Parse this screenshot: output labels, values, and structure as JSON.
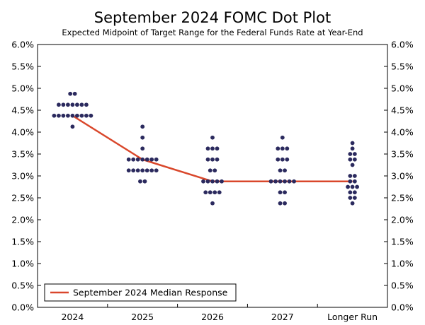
{
  "chart_data": {
    "type": "scatter",
    "title": "September 2024 FOMC Dot Plot",
    "subtitle": "Expected Midpoint of Target Range for the Federal Funds Rate at Year-End",
    "categories": [
      "2024",
      "2025",
      "2026",
      "2027",
      "Longer Run"
    ],
    "y_ticks": [
      "0.0%",
      "0.5%",
      "1.0%",
      "1.5%",
      "2.0%",
      "2.5%",
      "3.0%",
      "3.5%",
      "4.0%",
      "4.5%",
      "5.0%",
      "5.5%",
      "6.0%"
    ],
    "ylim": [
      0,
      6
    ],
    "grid": false,
    "dot_color": "#2b2a5e",
    "median_color": "#d9472b",
    "dots": [
      {
        "category": "2024",
        "counts": [
          {
            "value": 4.875,
            "count": 2
          },
          {
            "value": 4.625,
            "count": 7
          },
          {
            "value": 4.375,
            "count": 9
          },
          {
            "value": 4.125,
            "count": 1
          }
        ]
      },
      {
        "category": "2025",
        "counts": [
          {
            "value": 4.125,
            "count": 1
          },
          {
            "value": 3.875,
            "count": 1
          },
          {
            "value": 3.625,
            "count": 1
          },
          {
            "value": 3.375,
            "count": 7
          },
          {
            "value": 3.125,
            "count": 7
          },
          {
            "value": 2.875,
            "count": 2
          }
        ]
      },
      {
        "category": "2026",
        "counts": [
          {
            "value": 3.875,
            "count": 1
          },
          {
            "value": 3.625,
            "count": 3
          },
          {
            "value": 3.375,
            "count": 3
          },
          {
            "value": 3.125,
            "count": 2
          },
          {
            "value": 2.875,
            "count": 5
          },
          {
            "value": 2.625,
            "count": 4
          },
          {
            "value": 2.375,
            "count": 1
          }
        ]
      },
      {
        "category": "2027",
        "counts": [
          {
            "value": 3.875,
            "count": 1
          },
          {
            "value": 3.625,
            "count": 3
          },
          {
            "value": 3.375,
            "count": 3
          },
          {
            "value": 3.125,
            "count": 2
          },
          {
            "value": 2.875,
            "count": 6
          },
          {
            "value": 2.625,
            "count": 2
          },
          {
            "value": 2.375,
            "count": 2
          }
        ]
      },
      {
        "category": "Longer Run",
        "counts": [
          {
            "value": 3.75,
            "count": 1
          },
          {
            "value": 3.625,
            "count": 1
          },
          {
            "value": 3.5,
            "count": 2
          },
          {
            "value": 3.375,
            "count": 2
          },
          {
            "value": 3.25,
            "count": 1
          },
          {
            "value": 3.0,
            "count": 2
          },
          {
            "value": 2.875,
            "count": 2
          },
          {
            "value": 2.75,
            "count": 3
          },
          {
            "value": 2.625,
            "count": 2
          },
          {
            "value": 2.5,
            "count": 2
          },
          {
            "value": 2.375,
            "count": 1
          }
        ]
      }
    ],
    "series": [
      {
        "name": "September 2024 Median Response",
        "x": [
          "2024",
          "2025",
          "2026",
          "2027",
          "Longer Run"
        ],
        "values": [
          4.375,
          3.375,
          2.875,
          2.875,
          2.875
        ]
      }
    ],
    "legend": "bottom-left"
  }
}
